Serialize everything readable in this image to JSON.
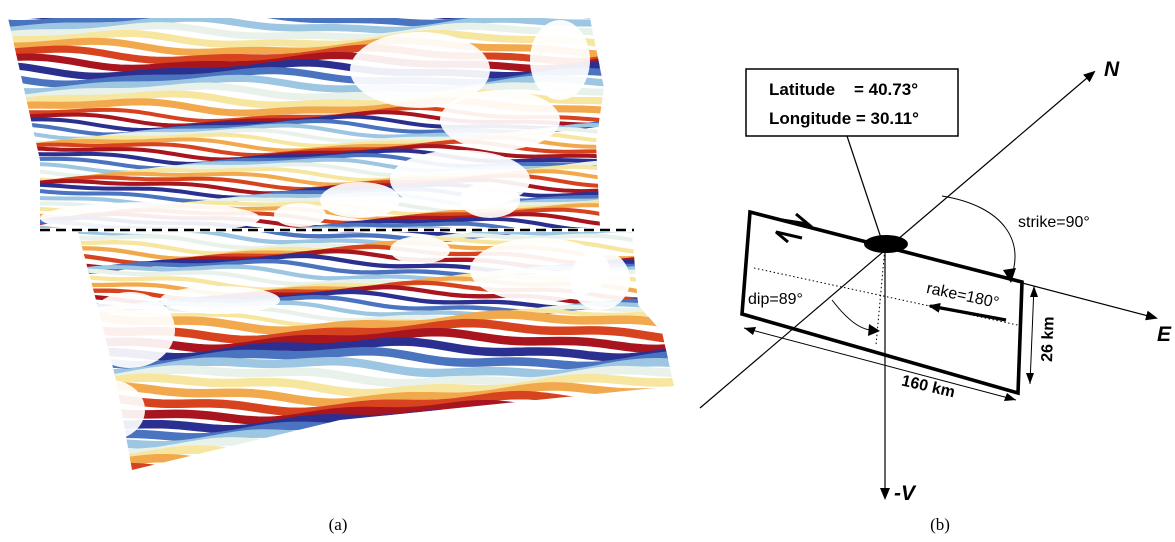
{
  "panel_a": {
    "caption": "(a)"
  },
  "panel_b": {
    "caption": "(b)",
    "epicenter_box": {
      "latitude_line": "Latitude    = 40.73°",
      "longitude_line": "Longitude = 30.11°"
    },
    "axes": {
      "north": "N",
      "east": "E",
      "down": "-V"
    },
    "labels": {
      "strike": "strike=90°",
      "dip": "dip=89°",
      "rake": "rake=180°",
      "length": "160 km",
      "width": "26 km"
    }
  },
  "colors": {
    "fringe_palette": [
      "#2b2f8f",
      "#4a73c0",
      "#9cc6e2",
      "#e9f2ea",
      "#f6e6a0",
      "#f2a94e",
      "#d8431f",
      "#a8151e"
    ],
    "ink": "#000000"
  }
}
